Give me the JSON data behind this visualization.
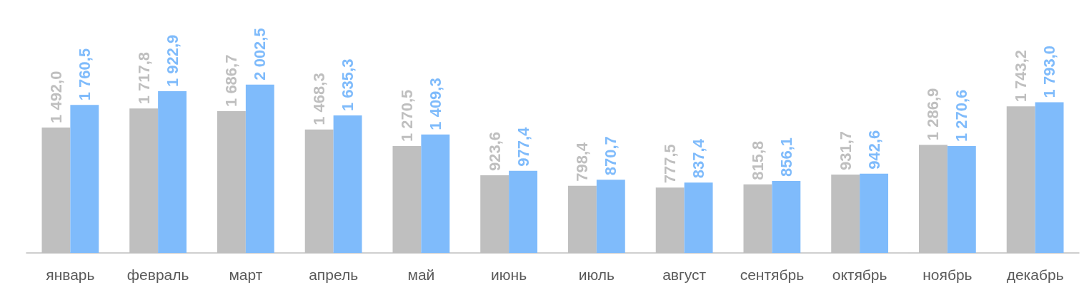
{
  "chart_data": {
    "type": "bar",
    "categories": [
      "январь",
      "февраль",
      "март",
      "апрель",
      "май",
      "июнь",
      "июль",
      "август",
      "сентябрь",
      "октябрь",
      "ноябрь",
      "декабрь"
    ],
    "series": [
      {
        "color": "#bfbfbf",
        "values": [
          1492.0,
          1717.8,
          1686.7,
          1468.3,
          1270.5,
          923.6,
          798.4,
          777.5,
          815.8,
          931.7,
          1286.9,
          1743.2
        ],
        "value_labels": [
          "1 492,0",
          "1 717,8",
          "1 686,7",
          "1 468,3",
          "1 270,5",
          "923,6",
          "798,4",
          "777,5",
          "815,8",
          "931,7",
          "1 286,9",
          "1 743,2"
        ]
      },
      {
        "color": "#7fbbfb",
        "values": [
          1760.5,
          1922.9,
          2002.5,
          1635.3,
          1409.3,
          977.4,
          870.7,
          837.4,
          856.1,
          942.6,
          1270.6,
          1793.0
        ],
        "value_labels": [
          "1 760,5",
          "1 922,9",
          "2 002,5",
          "1 635,3",
          "1 409,3",
          "977,4",
          "870,7",
          "837,4",
          "856,1",
          "942,6",
          "1 270,6",
          "1 793,0"
        ]
      }
    ],
    "tick_labels": "x",
    "grid": false
  }
}
